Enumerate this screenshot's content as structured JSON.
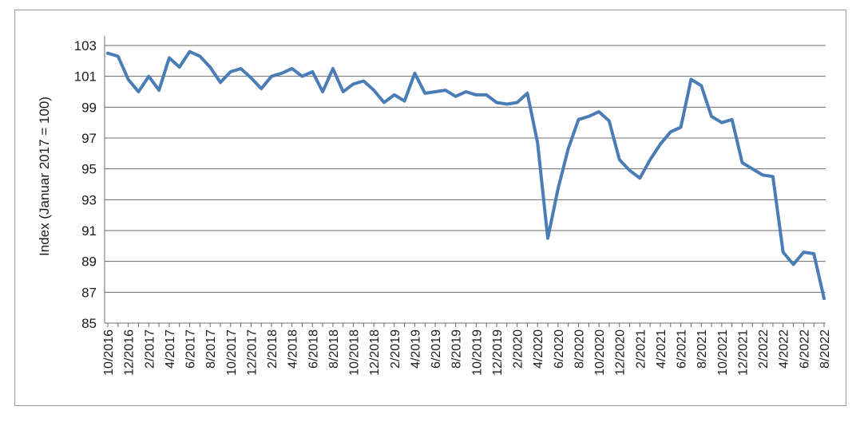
{
  "chart_data": {
    "type": "line",
    "title": "",
    "xlabel": "",
    "ylabel": "Index (Januar 2017 = 100)",
    "ylim": [
      85,
      103
    ],
    "yticks": [
      85,
      87,
      89,
      91,
      93,
      95,
      97,
      99,
      101,
      103
    ],
    "grid": true,
    "legend": "none",
    "line_color": "#4a7db5",
    "x": [
      "10/2016",
      "11/2016",
      "12/2016",
      "1/2017",
      "2/2017",
      "3/2017",
      "4/2017",
      "5/2017",
      "6/2017",
      "7/2017",
      "8/2017",
      "9/2017",
      "10/2017",
      "11/2017",
      "12/2017",
      "1/2018",
      "2/2018",
      "3/2018",
      "4/2018",
      "5/2018",
      "6/2018",
      "7/2018",
      "8/2018",
      "9/2018",
      "10/2018",
      "11/2018",
      "12/2018",
      "1/2019",
      "2/2019",
      "3/2019",
      "4/2019",
      "5/2019",
      "6/2019",
      "7/2019",
      "8/2019",
      "9/2019",
      "10/2019",
      "11/2019",
      "12/2019",
      "1/2020",
      "2/2020",
      "3/2020",
      "4/2020",
      "5/2020",
      "6/2020",
      "7/2020",
      "8/2020",
      "9/2020",
      "10/2020",
      "11/2020",
      "12/2020",
      "1/2021",
      "2/2021",
      "3/2021",
      "4/2021",
      "5/2021",
      "6/2021",
      "7/2021",
      "8/2021",
      "9/2021",
      "10/2021",
      "11/2021",
      "12/2021",
      "1/2022",
      "2/2022",
      "3/2022",
      "4/2022",
      "5/2022",
      "6/2022",
      "7/2022",
      "8/2022"
    ],
    "xtick_labels": [
      "10/2016",
      "12/2016",
      "2/2017",
      "4/2017",
      "6/2017",
      "8/2017",
      "10/2017",
      "12/2017",
      "2/2018",
      "4/2018",
      "6/2018",
      "8/2018",
      "10/2018",
      "12/2018",
      "2/2019",
      "4/2019",
      "6/2019",
      "8/2019",
      "10/2019",
      "12/2019",
      "2/2020",
      "4/2020",
      "6/2020",
      "8/2020",
      "10/2020",
      "12/2020",
      "2/2021",
      "4/2021",
      "6/2021",
      "8/2021",
      "10/2021",
      "12/2021",
      "2/2022",
      "4/2022",
      "6/2022",
      "8/2022"
    ],
    "values": [
      102.5,
      102.3,
      100.8,
      100.0,
      101.0,
      100.1,
      102.2,
      101.6,
      102.6,
      102.3,
      101.6,
      100.6,
      101.3,
      101.5,
      100.9,
      100.2,
      101.0,
      101.2,
      101.5,
      101.0,
      101.3,
      100.0,
      101.5,
      100.0,
      100.5,
      100.7,
      100.1,
      99.3,
      99.8,
      99.4,
      101.2,
      99.9,
      100.0,
      100.1,
      99.7,
      100.0,
      99.8,
      99.8,
      99.3,
      99.2,
      99.3,
      99.9,
      96.7,
      90.5,
      93.7,
      96.3,
      98.2,
      98.4,
      98.7,
      98.1,
      95.6,
      94.9,
      94.4,
      95.6,
      96.6,
      97.4,
      97.7,
      100.8,
      100.4,
      98.4,
      98.0,
      98.2,
      95.4,
      95.0,
      94.6,
      94.5,
      89.6,
      88.8,
      89.6,
      89.5,
      86.6
    ]
  }
}
